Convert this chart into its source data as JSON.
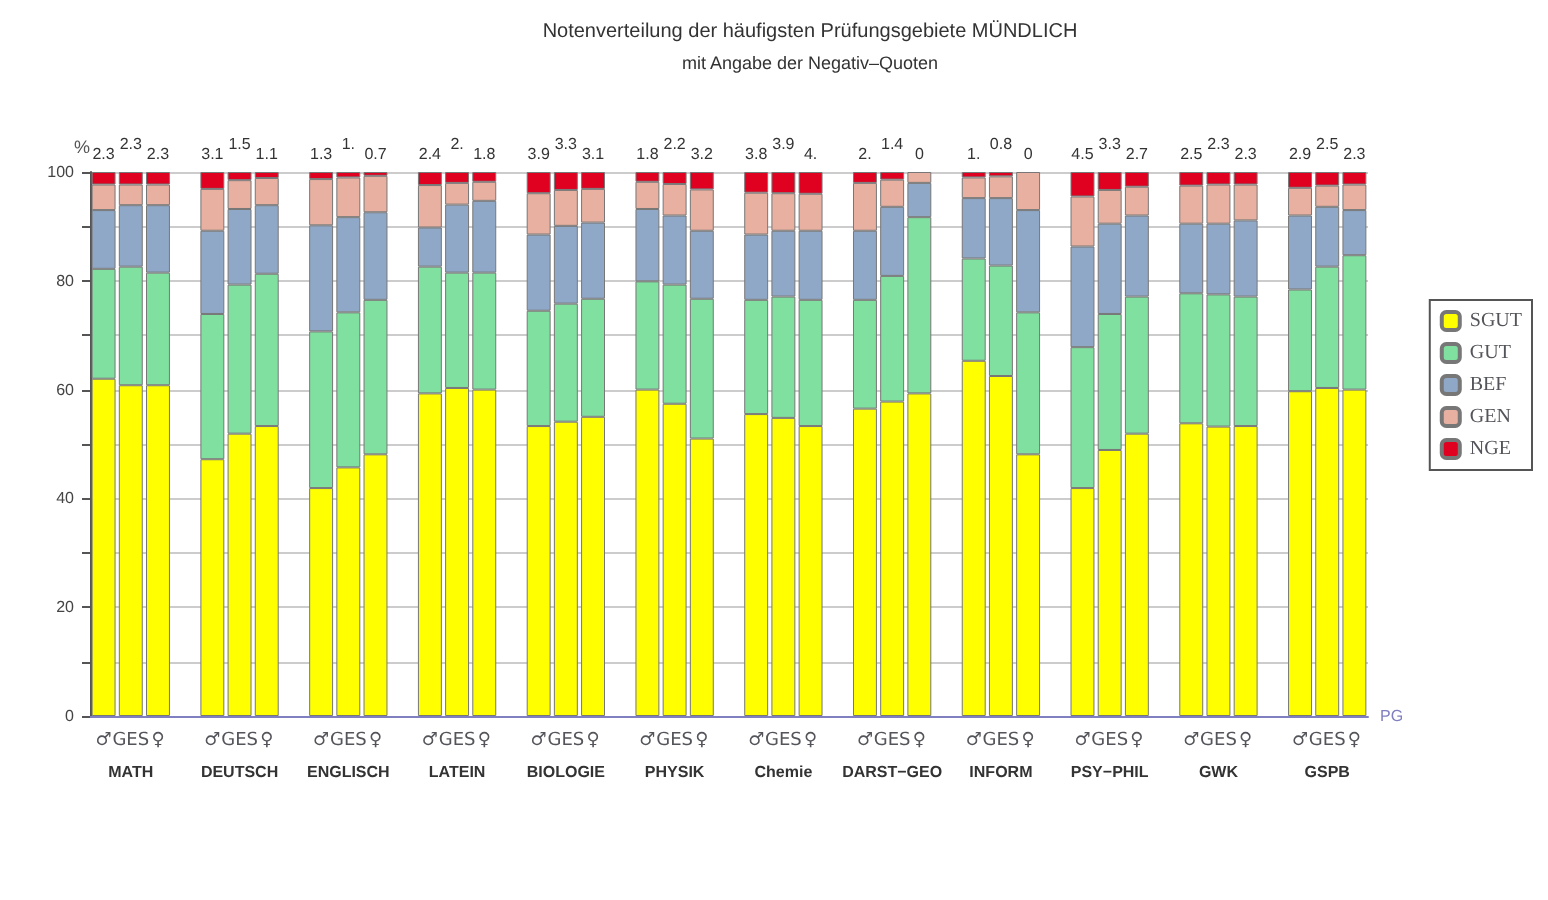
{
  "chart_data": {
    "type": "bar",
    "stacked": true,
    "title": "Notenverteilung der häufigsten Prüfungsgebiete MÜNDLICH",
    "subtitle": "mit Angabe der Negativ–Quoten",
    "ylabel": "%",
    "xlabel": "PG",
    "categories": [
      "♂",
      "GES",
      "♀",
      null,
      "♂",
      "GES",
      "♀",
      null,
      "♂",
      "GES",
      "♀",
      null,
      "♂",
      "GES",
      "♀",
      null,
      "♂",
      "GES",
      "♀",
      null,
      "♂",
      "GES",
      "♀",
      null,
      "♂",
      "GES",
      "♀",
      null,
      "♂",
      "GES",
      "♀",
      null,
      "♂",
      "GES",
      "♀",
      null,
      "♂",
      "GES",
      "♀",
      null,
      "♂",
      "GES",
      "♀",
      null,
      "♂",
      "GES",
      "♀"
    ],
    "series": [
      {
        "name": "SGUT",
        "color": "#ffff00",
        "values": [
          62,
          60.8,
          60.8,
          null,
          47.2,
          51.9,
          53.3,
          null,
          41.9,
          45.7,
          48.1,
          null,
          59.3,
          60.3,
          60,
          null,
          53.3,
          54.1,
          55,
          null,
          60,
          57.4,
          51,
          null,
          55.5,
          54.8,
          53.3,
          null,
          56.5,
          57.8,
          59.3,
          null,
          65.3,
          62.5,
          48.1,
          null,
          41.9,
          48.9,
          51.9,
          null,
          53.8,
          53.2,
          53.3,
          null,
          59.7,
          60.3,
          60
        ]
      },
      {
        "name": "GUT",
        "color": "#80e0a0",
        "values": [
          20.2,
          21.8,
          20.7,
          null,
          26.7,
          27.4,
          28,
          null,
          28.8,
          28.5,
          28.4,
          null,
          23.3,
          21.2,
          21.5,
          null,
          21.2,
          21.7,
          21.7,
          null,
          19.9,
          21.9,
          25.7,
          null,
          21,
          22.3,
          23.2,
          null,
          20,
          23.1,
          32.4,
          null,
          18.8,
          20.3,
          26.1,
          null,
          25.9,
          25,
          25.2,
          null,
          23.9,
          24.3,
          23.8,
          null,
          18.7,
          22.3,
          24.7
        ]
      },
      {
        "name": "BEF",
        "color": "#8fa8c8",
        "values": [
          10.8,
          11.3,
          12.4,
          null,
          15.3,
          13.9,
          12.6,
          null,
          19.5,
          17.5,
          16.1,
          null,
          7.2,
          12.5,
          13.2,
          null,
          14,
          14.3,
          14,
          null,
          13.3,
          12.7,
          12.5,
          null,
          12,
          12.1,
          12.7,
          null,
          12.7,
          12.7,
          6.3,
          null,
          11.1,
          12.4,
          18.8,
          null,
          18.5,
          16.6,
          14.9,
          null,
          12.8,
          13,
          14,
          null,
          13.6,
          11,
          8.3
        ]
      },
      {
        "name": "GEN",
        "color": "#e8b0a0",
        "values": [
          4.7,
          3.8,
          3.8,
          null,
          7.7,
          5.3,
          5,
          null,
          8.5,
          7.3,
          6.7,
          null,
          7.8,
          4,
          3.5,
          null,
          7.6,
          6.6,
          6.2,
          null,
          5,
          5.8,
          7.6,
          null,
          7.7,
          6.9,
          6.8,
          null,
          8.8,
          5,
          2,
          null,
          3.8,
          4,
          7,
          null,
          9.2,
          6.2,
          5.3,
          null,
          7,
          7.2,
          6.6,
          null,
          5.1,
          3.9,
          4.7
        ]
      },
      {
        "name": "NGE",
        "color": "#e00020",
        "values": [
          2.3,
          2.3,
          2.3,
          null,
          3.1,
          1.5,
          1.1,
          null,
          1.3,
          1,
          0.7,
          null,
          2.4,
          2,
          1.8,
          null,
          3.9,
          3.3,
          3.1,
          null,
          1.8,
          2.2,
          3.2,
          null,
          3.8,
          3.9,
          4,
          null,
          2,
          1.4,
          0,
          null,
          1,
          0.8,
          0,
          null,
          4.5,
          3.3,
          2.7,
          null,
          2.5,
          2.3,
          2.3,
          null,
          2.9,
          2.5,
          2.3
        ],
        "value_labels": [
          "2.3",
          "2.3",
          "2.3",
          null,
          "3.1",
          "1.5",
          "1.1",
          null,
          "1.3",
          "1.",
          "0.7",
          null,
          "2.4",
          "2.",
          "1.8",
          null,
          "3.9",
          "3.3",
          "3.1",
          null,
          "1.8",
          "2.2",
          "3.2",
          null,
          "3.8",
          "3.9",
          "4.",
          null,
          "2.",
          "1.4",
          "0",
          null,
          "1.",
          "0.8",
          "0",
          null,
          "4.5",
          "3.3",
          "2.7",
          null,
          "2.5",
          "2.3",
          "2.3",
          null,
          "2.9",
          "2.5",
          "2.3"
        ]
      }
    ],
    "annotations": [
      "MATH",
      "DEUTSCH",
      "ENGLISCH",
      "LATEIN",
      "BIOLOGIE",
      "PHYSIK",
      "Chemie",
      "DARST−GEO",
      "INFORM",
      "PSY−PHIL",
      "GWK",
      "GSPB"
    ],
    "ylim": [
      0,
      100
    ],
    "yticks": [
      0,
      {
        "value": 10,
        "label": null
      },
      20,
      {
        "value": 30,
        "label": null
      },
      40,
      {
        "value": 50,
        "label": null
      },
      60,
      {
        "value": 70,
        "label": null
      },
      80,
      {
        "value": 90,
        "label": null
      },
      100
    ],
    "grid": "y",
    "legend": "right"
  }
}
